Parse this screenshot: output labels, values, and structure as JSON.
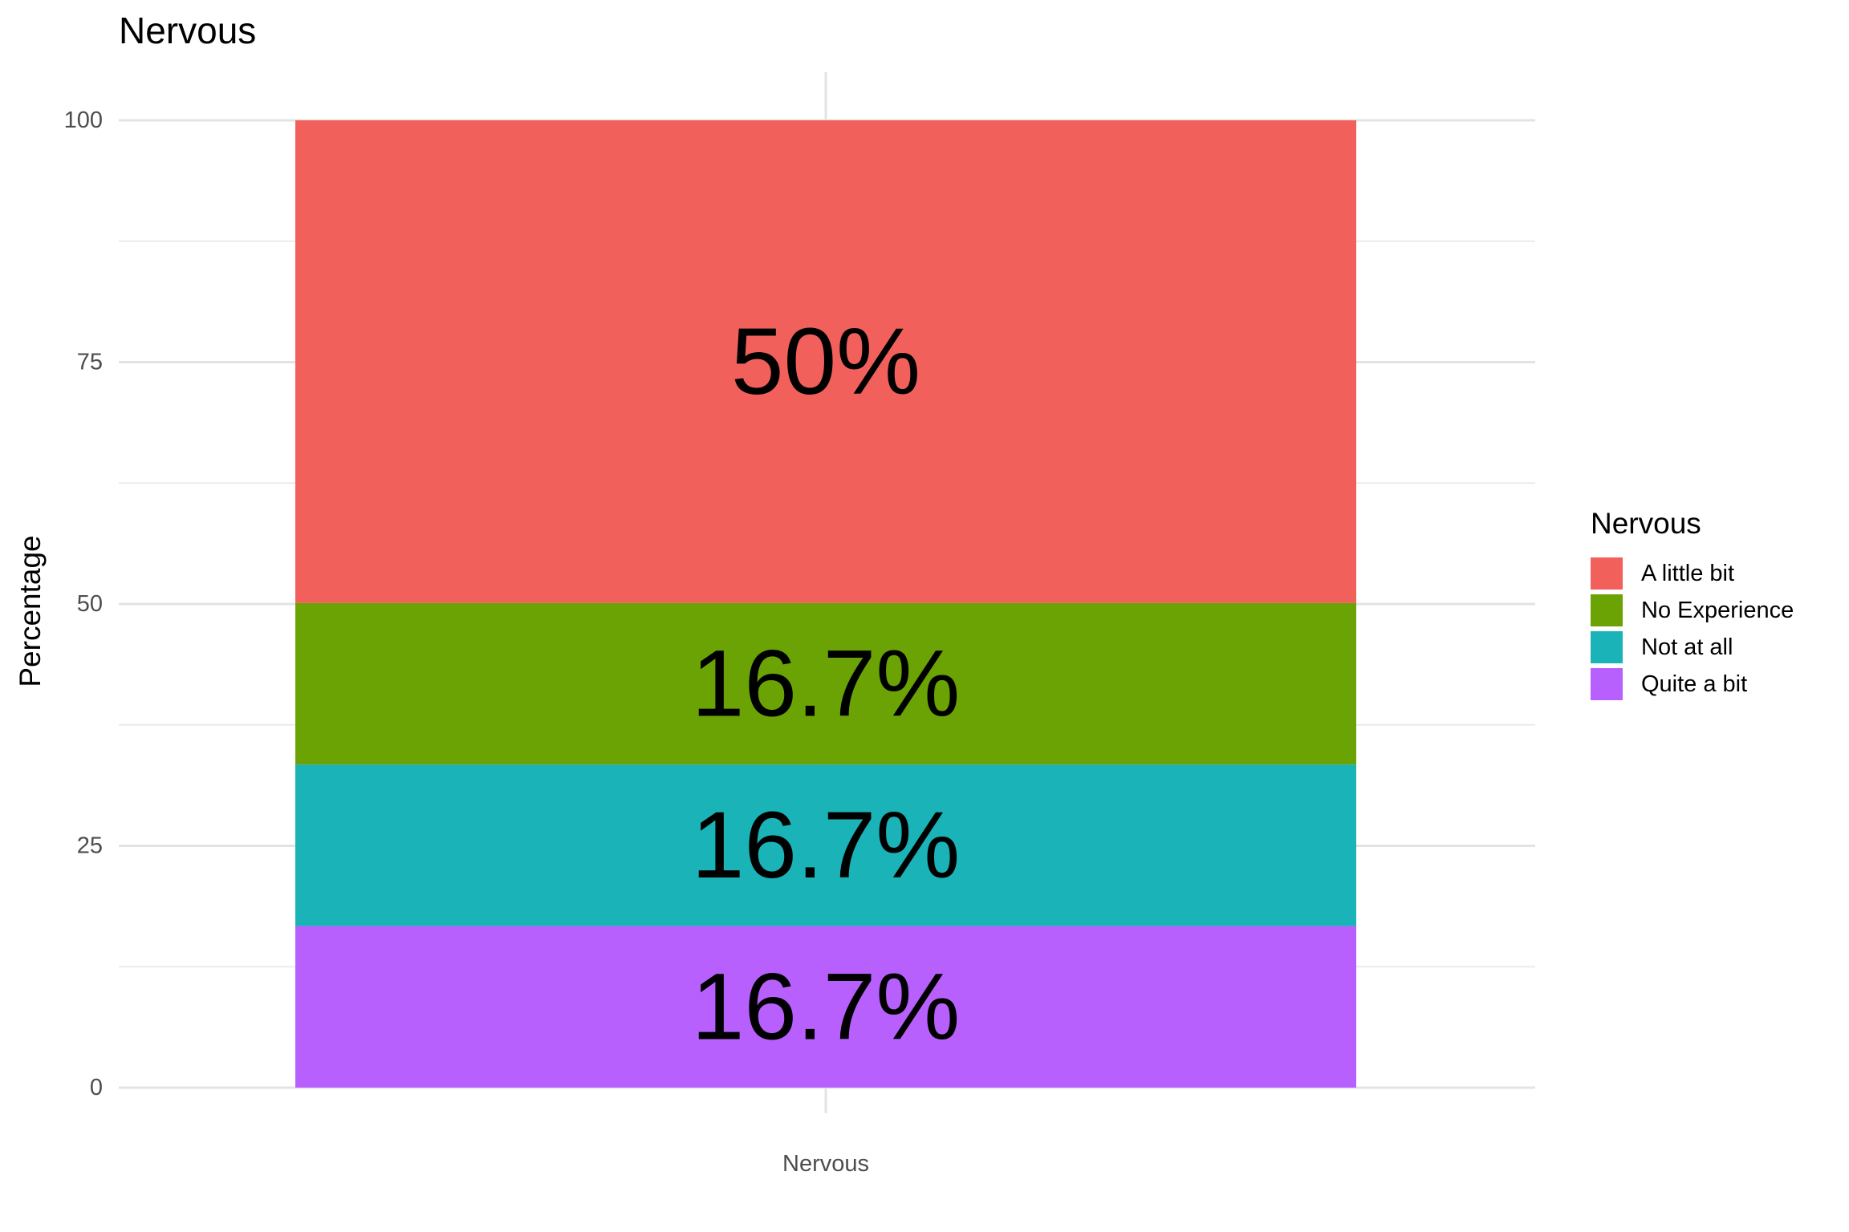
{
  "chart_data": {
    "type": "bar",
    "stacked": true,
    "title": "Nervous",
    "xlabel": "",
    "ylabel": "Percentage",
    "categories": [
      "Nervous"
    ],
    "ylim": [
      0,
      100
    ],
    "yticks": [
      0,
      25,
      50,
      75,
      100
    ],
    "grid": true,
    "legend": {
      "title": "Nervous",
      "position": "right"
    },
    "series": [
      {
        "name": "A little bit",
        "values": [
          50
        ],
        "label": "50%",
        "color": "#F2605C"
      },
      {
        "name": "No Experience",
        "values": [
          16.7
        ],
        "label": "16.7%",
        "color": "#6AA303"
      },
      {
        "name": "Not at all",
        "values": [
          16.7
        ],
        "label": "16.7%",
        "color": "#19B3B8"
      },
      {
        "name": "Quite a bit",
        "values": [
          16.7
        ],
        "label": "16.7%",
        "color": "#B860FE"
      }
    ]
  }
}
